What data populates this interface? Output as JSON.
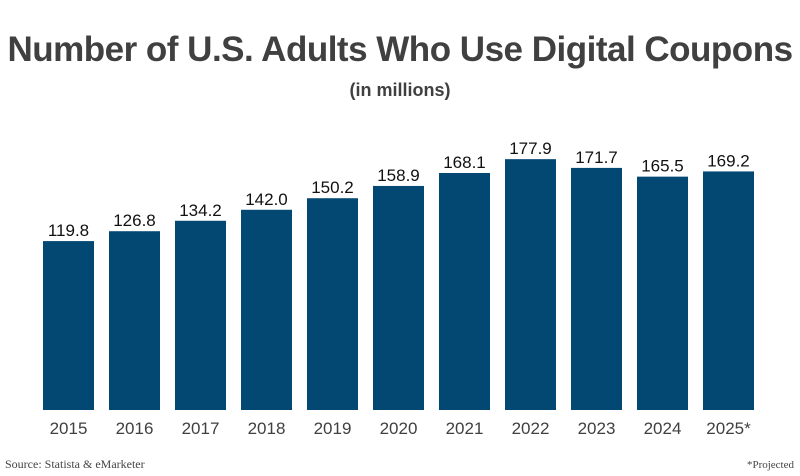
{
  "chart_data": {
    "type": "bar",
    "title": "Number of U.S. Adults Who Use Digital Coupons",
    "subtitle": "(in millions)",
    "xlabel": "",
    "ylabel": "",
    "categories": [
      "2015",
      "2016",
      "2017",
      "2018",
      "2019",
      "2020",
      "2021",
      "2022",
      "2023",
      "2024",
      "2025*"
    ],
    "values": [
      119.8,
      126.8,
      134.2,
      142.0,
      150.2,
      158.9,
      168.1,
      177.9,
      171.7,
      165.5,
      169.2
    ],
    "value_labels": [
      "119.8",
      "126.8",
      "134.2",
      "142.0",
      "150.2",
      "158.9",
      "168.1",
      "177.9",
      "171.7",
      "165.5",
      "169.2"
    ],
    "ylim": [
      0,
      180
    ],
    "grid": false,
    "legend": "none",
    "bar_color": "#024873",
    "text_color": "#404040",
    "source": "Source: Statista & eMarketer",
    "footnote": "*Projected"
  }
}
